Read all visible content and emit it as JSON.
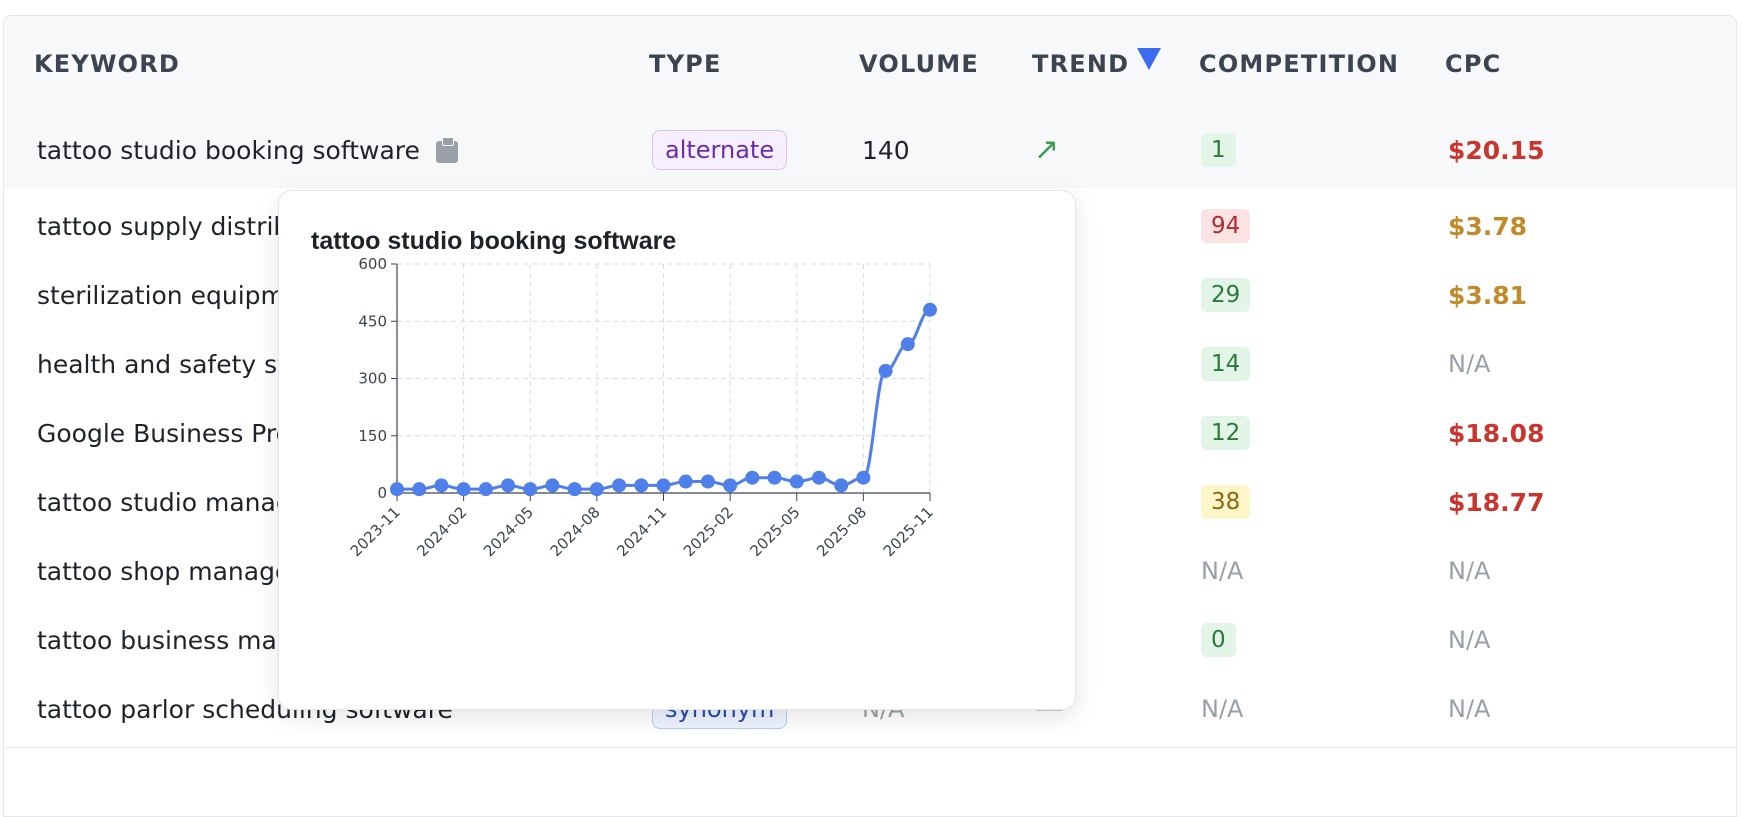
{
  "columns": {
    "keyword": "KEYWORD",
    "type": "TYPE",
    "volume": "VOLUME",
    "trend": "TREND",
    "competition": "COMPETITION",
    "cpc": "CPC"
  },
  "sort": {
    "column": "trend",
    "direction": "descending",
    "icon": "triangle-down-icon",
    "color": "#3b6cf0"
  },
  "rows": [
    {
      "keyword": "tattoo studio booking software",
      "type": "alternate",
      "volume": "140",
      "trend": "up",
      "trend_glyph": "↗",
      "competition": "1",
      "competition_level": "low",
      "cpc": "$20.15",
      "cpc_level": "red"
    },
    {
      "keyword": "tattoo supply distribu",
      "type": "",
      "volume": "",
      "trend": "up",
      "trend_glyph": "↗",
      "competition": "94",
      "competition_level": "high",
      "cpc": "$3.78",
      "cpc_level": "amber"
    },
    {
      "keyword": "sterilization equipme",
      "type": "",
      "volume": "",
      "trend": "up",
      "trend_glyph": "↗",
      "competition": "29",
      "competition_level": "low",
      "cpc": "$3.81",
      "cpc_level": "amber"
    },
    {
      "keyword": "health and safety sta",
      "type": "",
      "volume": "",
      "trend": "up",
      "trend_glyph": "↗",
      "competition": "14",
      "competition_level": "low",
      "cpc": "N/A",
      "cpc_level": "na"
    },
    {
      "keyword": "Google Business Prof",
      "type": "",
      "volume": "",
      "trend": "up",
      "trend_glyph": "↗",
      "competition": "12",
      "competition_level": "low",
      "cpc": "$18.08",
      "cpc_level": "red"
    },
    {
      "keyword": "tattoo studio manage",
      "type": "",
      "volume": "",
      "trend": "flat",
      "trend_glyph": "→",
      "competition": "38",
      "competition_level": "mid",
      "cpc": "$18.77",
      "cpc_level": "red"
    },
    {
      "keyword": "tattoo shop manager",
      "type": "",
      "volume": "",
      "trend": "none",
      "trend_glyph": "—",
      "competition": "N/A",
      "competition_level": "na",
      "cpc": "N/A",
      "cpc_level": "na"
    },
    {
      "keyword": "tattoo business mana",
      "type": "",
      "volume": "",
      "trend": "flat",
      "trend_glyph": "→",
      "competition": "0",
      "competition_level": "low",
      "cpc": "N/A",
      "cpc_level": "na"
    },
    {
      "keyword": "tattoo parlor scheduling software",
      "type": "synonym",
      "volume": "N/A",
      "trend": "none",
      "trend_glyph": "—",
      "competition": "N/A",
      "competition_level": "na",
      "cpc": "N/A",
      "cpc_level": "na"
    }
  ],
  "popup": {
    "title": "tattoo studio booking software",
    "icon": "clipboard-icon"
  },
  "colors": {
    "line": "#4f7fe8",
    "trend_up": "#3f9a4f",
    "cpc_red": "#c9352f",
    "cpc_amber": "#c18a2a"
  },
  "chart_data": {
    "type": "line",
    "title": "tattoo studio booking software",
    "xlabel": "",
    "ylabel": "",
    "x": [
      "2023-11",
      "2023-12",
      "2024-01",
      "2024-02",
      "2024-03",
      "2024-04",
      "2024-05",
      "2024-06",
      "2024-07",
      "2024-08",
      "2024-09",
      "2024-10",
      "2024-11",
      "2024-12",
      "2025-01",
      "2025-02",
      "2025-03",
      "2025-04",
      "2025-05",
      "2025-06",
      "2025-07",
      "2025-08",
      "2025-09",
      "2025-10",
      "2025-11"
    ],
    "series": [
      {
        "values": [
          10,
          10,
          20,
          10,
          10,
          20,
          10,
          20,
          10,
          10,
          20,
          20,
          20,
          30,
          30,
          20,
          40,
          40,
          30,
          40,
          20,
          40,
          320,
          390,
          480
        ]
      }
    ],
    "x_tick_labels": [
      "2023-11",
      "2024-02",
      "2024-05",
      "2024-08",
      "2024-11",
      "2025-02",
      "2025-05",
      "2025-08",
      "2025-11"
    ],
    "y_ticks": [
      0,
      150,
      300,
      450,
      600
    ],
    "ylim": [
      0,
      600
    ],
    "grid": true
  }
}
